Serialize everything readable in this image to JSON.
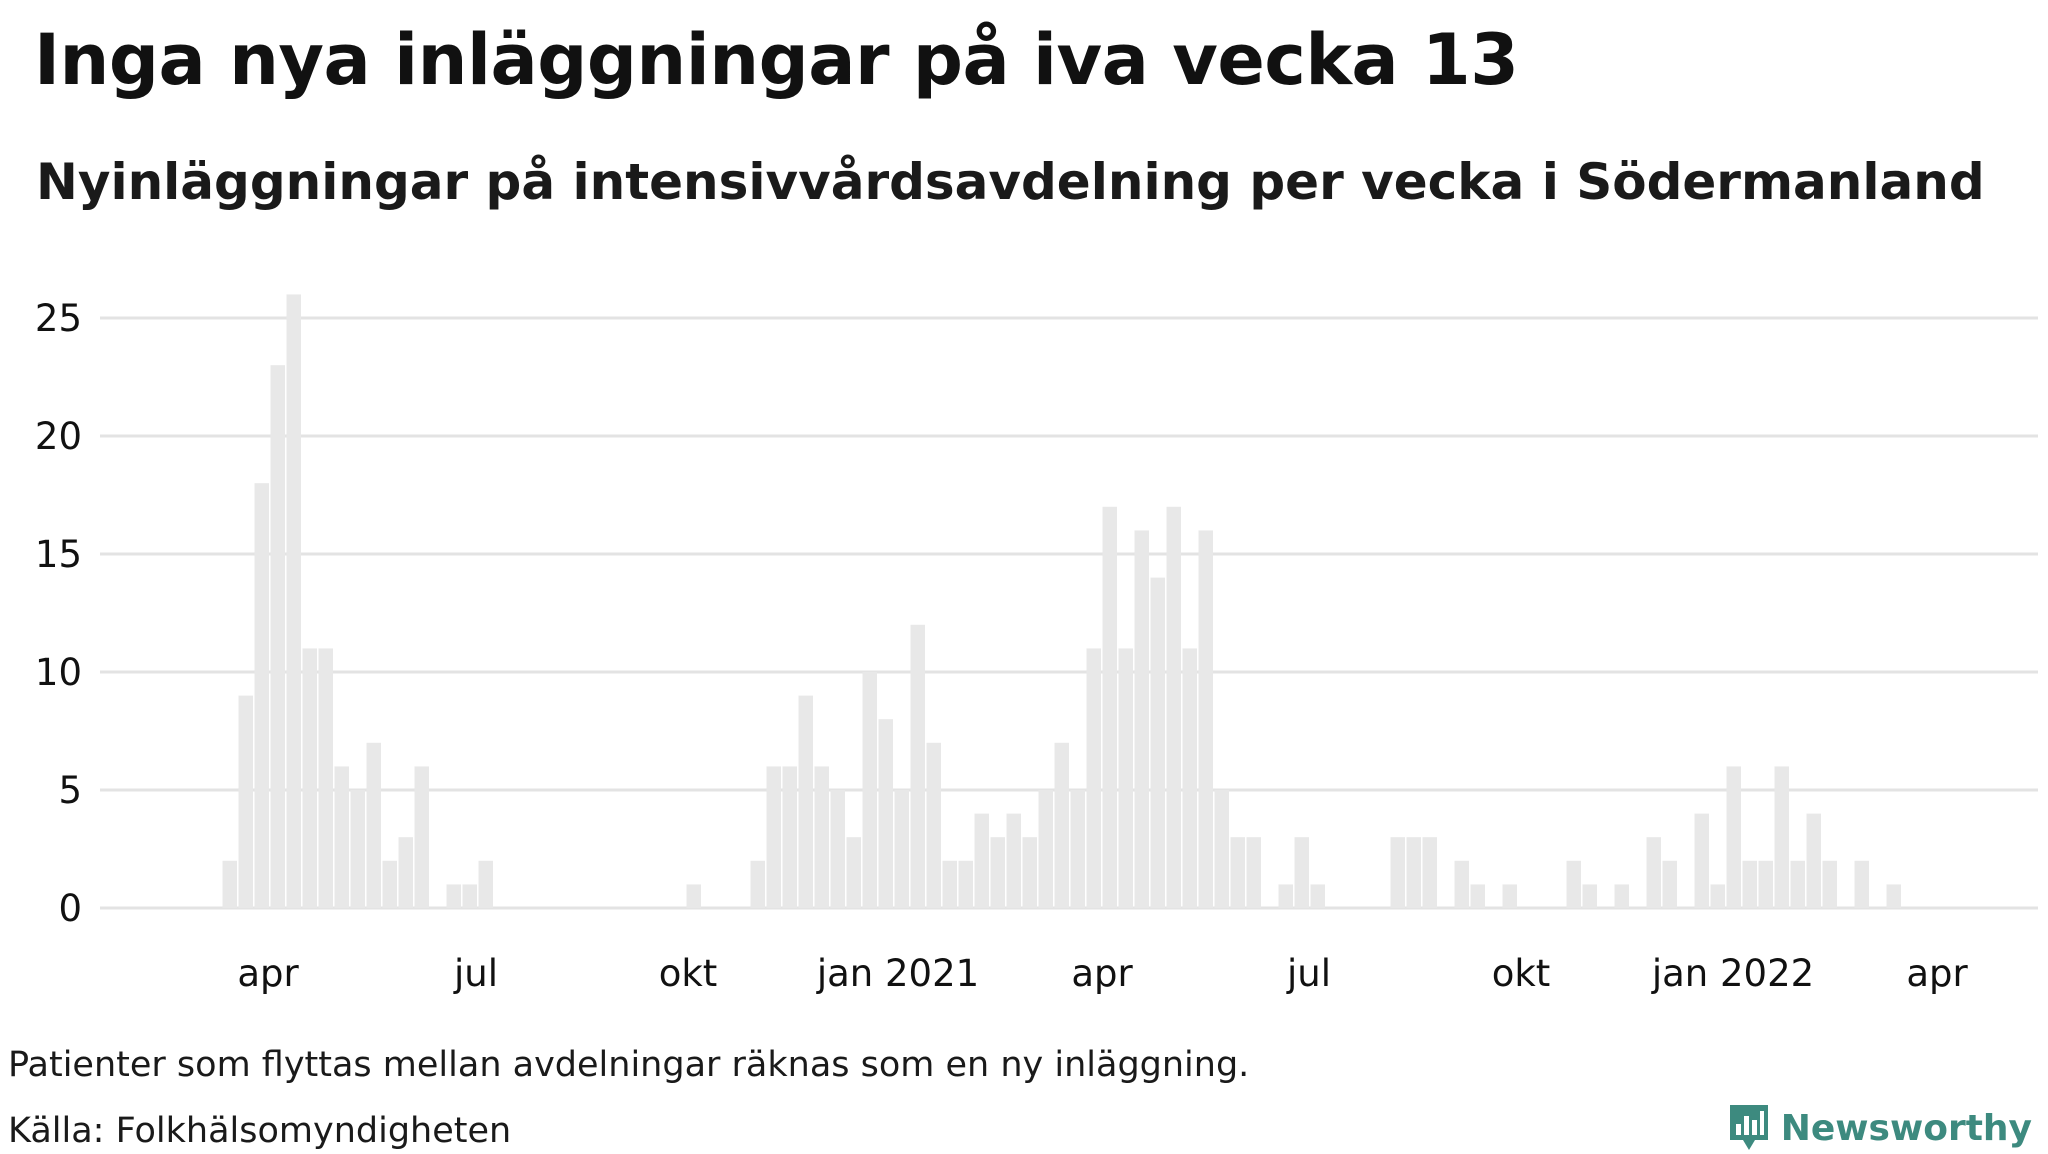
{
  "title": "Inga nya inläggningar på iva vecka 13",
  "subtitle": "Nyinläggningar på intensivvårdsavdelning per vecka i Södermanland",
  "footnote": "Patienter som flyttas mellan avdelningar räknas som en ny inläggning.",
  "source": "Källa: Folkhälsomyndigheten",
  "brand": {
    "name": "Newsworthy",
    "logo_icon": "bar-chart-pin-icon",
    "color": "#3d8a7f"
  },
  "colors": {
    "bar": "#e8e8e8",
    "grid": "#e3e3e3",
    "text": "#111111"
  },
  "chart_data": {
    "type": "bar",
    "xlabel": "",
    "ylabel": "",
    "ylim": [
      0,
      26
    ],
    "yticks": [
      0,
      5,
      10,
      15,
      20,
      25
    ],
    "xticks": [
      "apr",
      "jul",
      "okt",
      "jan 2021",
      "apr",
      "jul",
      "okt",
      "jan 2022",
      "apr"
    ],
    "grid": true,
    "legend": "none",
    "x_unit": "week",
    "weeks": [
      "2020-03-16",
      "2020-03-23",
      "2020-03-30",
      "2020-04-06",
      "2020-04-13",
      "2020-04-20",
      "2020-04-27",
      "2020-05-04",
      "2020-05-11",
      "2020-05-18",
      "2020-05-25",
      "2020-06-01",
      "2020-06-08",
      "2020-06-15",
      "2020-06-22",
      "2020-06-29",
      "2020-07-06",
      "2020-07-13",
      "2020-07-20",
      "2020-07-27",
      "2020-08-03",
      "2020-08-10",
      "2020-08-17",
      "2020-08-24",
      "2020-08-31",
      "2020-09-07",
      "2020-09-14",
      "2020-09-21",
      "2020-09-28",
      "2020-10-05",
      "2020-10-12",
      "2020-10-19",
      "2020-10-26",
      "2020-11-02",
      "2020-11-09",
      "2020-11-16",
      "2020-11-23",
      "2020-11-30",
      "2020-12-07",
      "2020-12-14",
      "2020-12-21",
      "2020-12-28",
      "2021-01-04",
      "2021-01-11",
      "2021-01-18",
      "2021-01-25",
      "2021-02-01",
      "2021-02-08",
      "2021-02-15",
      "2021-02-22",
      "2021-03-01",
      "2021-03-08",
      "2021-03-15",
      "2021-03-22",
      "2021-03-29",
      "2021-04-05",
      "2021-04-12",
      "2021-04-19",
      "2021-04-26",
      "2021-05-03",
      "2021-05-10",
      "2021-05-17",
      "2021-05-24",
      "2021-05-31",
      "2021-06-07",
      "2021-06-14",
      "2021-06-21",
      "2021-06-28",
      "2021-07-05",
      "2021-07-12",
      "2021-07-19",
      "2021-07-26",
      "2021-08-02",
      "2021-08-09",
      "2021-08-16",
      "2021-08-23",
      "2021-08-30",
      "2021-09-06",
      "2021-09-13",
      "2021-09-20",
      "2021-09-27",
      "2021-10-04",
      "2021-10-11",
      "2021-10-18",
      "2021-10-25",
      "2021-11-01",
      "2021-11-08",
      "2021-11-15",
      "2021-11-22",
      "2021-11-29",
      "2021-12-06",
      "2021-12-13",
      "2021-12-20",
      "2021-12-27",
      "2022-01-03",
      "2022-01-10",
      "2022-01-17",
      "2022-01-24",
      "2022-01-31",
      "2022-02-07",
      "2022-02-14",
      "2022-02-21",
      "2022-02-28",
      "2022-03-07",
      "2022-03-14",
      "2022-03-21",
      "2022-03-28"
    ],
    "values": [
      2,
      9,
      18,
      23,
      26,
      11,
      11,
      6,
      5,
      7,
      2,
      3,
      6,
      0,
      1,
      1,
      2,
      0,
      0,
      0,
      0,
      0,
      0,
      0,
      0,
      0,
      0,
      0,
      0,
      1,
      0,
      0,
      0,
      2,
      6,
      6,
      9,
      6,
      5,
      3,
      10,
      8,
      5,
      12,
      7,
      2,
      2,
      4,
      3,
      4,
      3,
      5,
      7,
      5,
      11,
      17,
      11,
      16,
      14,
      17,
      11,
      16,
      5,
      3,
      3,
      0,
      1,
      3,
      1,
      0,
      0,
      0,
      0,
      3,
      3,
      3,
      0,
      2,
      1,
      0,
      1,
      0,
      0,
      0,
      2,
      1,
      0,
      1,
      0,
      3,
      2,
      0,
      4,
      1,
      6,
      2,
      2,
      6,
      2,
      4,
      2,
      0,
      2,
      0,
      1,
      0,
      0
    ]
  }
}
